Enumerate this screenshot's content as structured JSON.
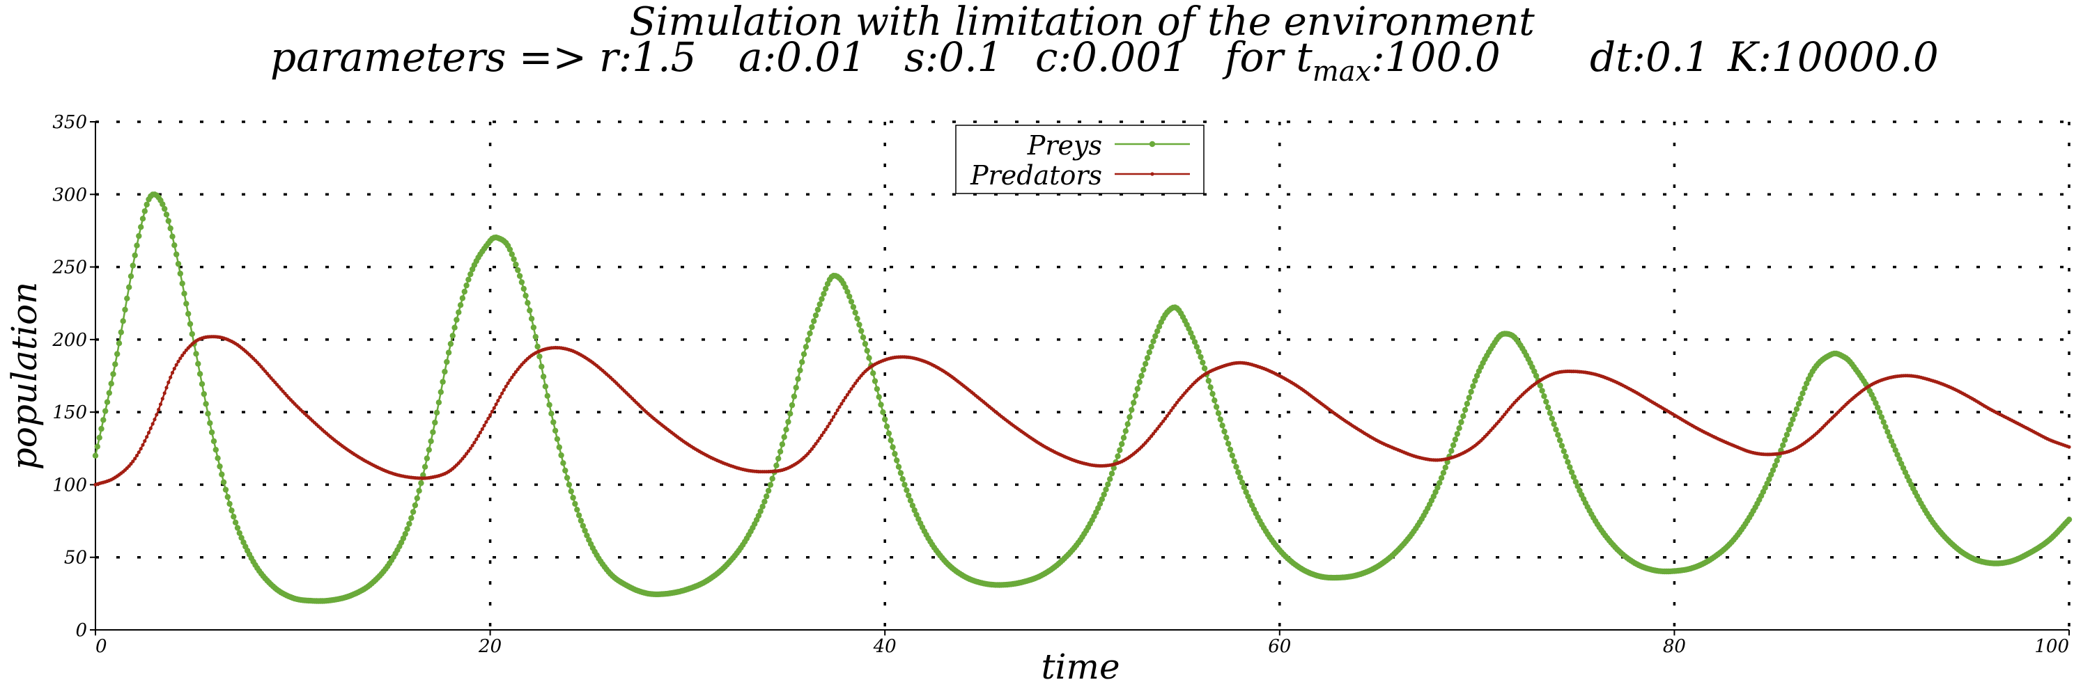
{
  "chart_data": {
    "type": "line",
    "title": "Simulation with limitation of the environment",
    "subtitle": {
      "lead": "parameters =>",
      "r": "r:1.5",
      "a": "a:0.01",
      "s": "s:0.1",
      "c": "c:0.001",
      "tmax_prefix": "for t",
      "tmax_sub": "max",
      "tmax_value": ":100.0",
      "dt": "dt:0.1",
      "K": "K:10000.0"
    },
    "xlabel": "time",
    "ylabel": "population",
    "xlim": [
      0,
      100
    ],
    "ylim": [
      0,
      350
    ],
    "xticks": [
      0,
      20,
      40,
      60,
      80,
      100
    ],
    "yticks": [
      0,
      50,
      100,
      150,
      200,
      250,
      300,
      350
    ],
    "grid": true,
    "legend_position": "top-center",
    "series": [
      {
        "name": "Preys",
        "color": "#6aaa3a",
        "points": [
          [
            0,
            120
          ],
          [
            1,
            183
          ],
          [
            2,
            258
          ],
          [
            2.6,
            293
          ],
          [
            3,
            300
          ],
          [
            3.5,
            290
          ],
          [
            4,
            265
          ],
          [
            5,
            197
          ],
          [
            6,
            130
          ],
          [
            7,
            78
          ],
          [
            8,
            47
          ],
          [
            9,
            30
          ],
          [
            10,
            22
          ],
          [
            11,
            20
          ],
          [
            12,
            20.5
          ],
          [
            13,
            24
          ],
          [
            14,
            32
          ],
          [
            15,
            48
          ],
          [
            16,
            77
          ],
          [
            17,
            130
          ],
          [
            18,
            197
          ],
          [
            19,
            245
          ],
          [
            20,
            268
          ],
          [
            20.4,
            270
          ],
          [
            21,
            262
          ],
          [
            22,
            220
          ],
          [
            23,
            155
          ],
          [
            24,
            100
          ],
          [
            25,
            62
          ],
          [
            26,
            40
          ],
          [
            27,
            30
          ],
          [
            28,
            25
          ],
          [
            29,
            25
          ],
          [
            30,
            28
          ],
          [
            31,
            34
          ],
          [
            32,
            45
          ],
          [
            33,
            63
          ],
          [
            34,
            92
          ],
          [
            35,
            138
          ],
          [
            36,
            195
          ],
          [
            37,
            235
          ],
          [
            37.4,
            244
          ],
          [
            38,
            236
          ],
          [
            39,
            197
          ],
          [
            40,
            145
          ],
          [
            41,
            100
          ],
          [
            42,
            68
          ],
          [
            43,
            48
          ],
          [
            44,
            37
          ],
          [
            45,
            32
          ],
          [
            46,
            31
          ],
          [
            47,
            33
          ],
          [
            48,
            38
          ],
          [
            49,
            48
          ],
          [
            50,
            64
          ],
          [
            51,
            90
          ],
          [
            52,
            128
          ],
          [
            53,
            175
          ],
          [
            54,
            212
          ],
          [
            54.6,
            222
          ],
          [
            55,
            218
          ],
          [
            56,
            188
          ],
          [
            57,
            145
          ],
          [
            58,
            105
          ],
          [
            59,
            75
          ],
          [
            60,
            55
          ],
          [
            61,
            43
          ],
          [
            62,
            37
          ],
          [
            63,
            36
          ],
          [
            64,
            38
          ],
          [
            65,
            44
          ],
          [
            66,
            55
          ],
          [
            67,
            72
          ],
          [
            68,
            98
          ],
          [
            69,
            135
          ],
          [
            70,
            175
          ],
          [
            71,
            200
          ],
          [
            71.4,
            204
          ],
          [
            72,
            200
          ],
          [
            73,
            175
          ],
          [
            74,
            138
          ],
          [
            75,
            102
          ],
          [
            76,
            75
          ],
          [
            77,
            57
          ],
          [
            78,
            46
          ],
          [
            79,
            41
          ],
          [
            80,
            40.5
          ],
          [
            81,
            43
          ],
          [
            82,
            50
          ],
          [
            83,
            62
          ],
          [
            84,
            82
          ],
          [
            85,
            110
          ],
          [
            86,
            145
          ],
          [
            87,
            178
          ],
          [
            88,
            190
          ],
          [
            88.6,
            188
          ],
          [
            89,
            183
          ],
          [
            90,
            162
          ],
          [
            91,
            130
          ],
          [
            92,
            100
          ],
          [
            93,
            76
          ],
          [
            94,
            60
          ],
          [
            95,
            50
          ],
          [
            96,
            46
          ],
          [
            97,
            47
          ],
          [
            98,
            53
          ],
          [
            99,
            62
          ],
          [
            100,
            76
          ]
        ]
      },
      {
        "name": "Predators",
        "color": "#a31e12",
        "points": [
          [
            0,
            100
          ],
          [
            1,
            105
          ],
          [
            2,
            118
          ],
          [
            3,
            145
          ],
          [
            4,
            180
          ],
          [
            5,
            198
          ],
          [
            6,
            202
          ],
          [
            7,
            198
          ],
          [
            8,
            187
          ],
          [
            9,
            172
          ],
          [
            10,
            157
          ],
          [
            11,
            144
          ],
          [
            12,
            132
          ],
          [
            13,
            122
          ],
          [
            14,
            114
          ],
          [
            15,
            108
          ],
          [
            16,
            105
          ],
          [
            17,
            105
          ],
          [
            18,
            110
          ],
          [
            19,
            125
          ],
          [
            20,
            148
          ],
          [
            21,
            172
          ],
          [
            22,
            188
          ],
          [
            23,
            194
          ],
          [
            24,
            193
          ],
          [
            25,
            186
          ],
          [
            26,
            175
          ],
          [
            27,
            162
          ],
          [
            28,
            149
          ],
          [
            29,
            138
          ],
          [
            30,
            128
          ],
          [
            31,
            120
          ],
          [
            32,
            114
          ],
          [
            33,
            110
          ],
          [
            34,
            109
          ],
          [
            35,
            111
          ],
          [
            36,
            120
          ],
          [
            37,
            138
          ],
          [
            38,
            160
          ],
          [
            39,
            178
          ],
          [
            40,
            186
          ],
          [
            41,
            188
          ],
          [
            42,
            185
          ],
          [
            43,
            178
          ],
          [
            44,
            168
          ],
          [
            45,
            157
          ],
          [
            46,
            146
          ],
          [
            47,
            136
          ],
          [
            48,
            127
          ],
          [
            49,
            120
          ],
          [
            50,
            115
          ],
          [
            51,
            113
          ],
          [
            52,
            116
          ],
          [
            53,
            126
          ],
          [
            54,
            142
          ],
          [
            55,
            160
          ],
          [
            56,
            174
          ],
          [
            57,
            181
          ],
          [
            58,
            184
          ],
          [
            59,
            181
          ],
          [
            60,
            175
          ],
          [
            61,
            167
          ],
          [
            62,
            157
          ],
          [
            63,
            147
          ],
          [
            64,
            138
          ],
          [
            65,
            130
          ],
          [
            66,
            124
          ],
          [
            67,
            119
          ],
          [
            68,
            117
          ],
          [
            69,
            120
          ],
          [
            70,
            128
          ],
          [
            71,
            142
          ],
          [
            72,
            158
          ],
          [
            73,
            170
          ],
          [
            74,
            177
          ],
          [
            75,
            178
          ],
          [
            76,
            176
          ],
          [
            77,
            171
          ],
          [
            78,
            164
          ],
          [
            79,
            156
          ],
          [
            80,
            148
          ],
          [
            81,
            140
          ],
          [
            82,
            133
          ],
          [
            83,
            127
          ],
          [
            84,
            122
          ],
          [
            85,
            121
          ],
          [
            86,
            124
          ],
          [
            87,
            133
          ],
          [
            88,
            146
          ],
          [
            89,
            159
          ],
          [
            90,
            169
          ],
          [
            91,
            174
          ],
          [
            92,
            175
          ],
          [
            93,
            172
          ],
          [
            94,
            167
          ],
          [
            95,
            160
          ],
          [
            96,
            152
          ],
          [
            97,
            145
          ],
          [
            98,
            138
          ],
          [
            99,
            131
          ],
          [
            100,
            126
          ]
        ]
      }
    ]
  }
}
